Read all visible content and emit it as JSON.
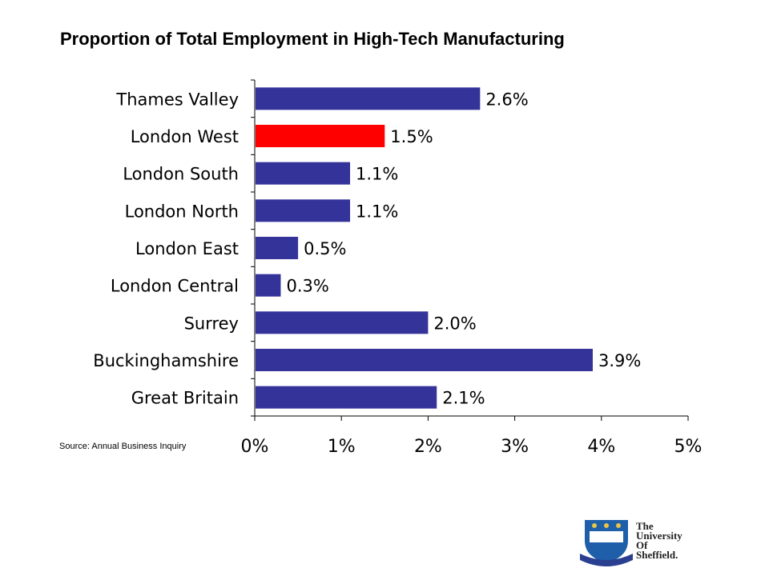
{
  "title": "Proportion of Total Employment in High-Tech Manufacturing",
  "source": "Source: Annual Business Inquiry",
  "colors": {
    "bar": "#333399",
    "highlight": "#ff0000",
    "axis": "#000000"
  },
  "logo": {
    "lines": [
      "The",
      "University",
      "Of",
      "Sheffield."
    ],
    "crest_colors": {
      "shield": "#1f5faa",
      "gold": "#e8c547",
      "ribbon": "#2a3f8f"
    }
  },
  "chart_data": {
    "type": "bar",
    "orientation": "horizontal",
    "title": "Proportion of Total Employment in High-Tech Manufacturing",
    "categories": [
      "Thames Valley",
      "London West",
      "London South",
      "London North",
      "London East",
      "London Central",
      "Surrey",
      "Buckinghamshire",
      "Great Britain"
    ],
    "values": [
      2.6,
      1.5,
      1.1,
      1.1,
      0.5,
      0.3,
      2.0,
      3.9,
      2.1
    ],
    "value_labels": [
      "2.6%",
      "1.5%",
      "1.1%",
      "1.1%",
      "0.5%",
      "0.3%",
      "2.0%",
      "3.9%",
      "2.1%"
    ],
    "highlight_category": "London West",
    "xlim": [
      0,
      5
    ],
    "xticks": [
      0,
      1,
      2,
      3,
      4,
      5
    ],
    "xtick_labels": [
      "0%",
      "1%",
      "2%",
      "3%",
      "4%",
      "5%"
    ],
    "xlabel": "",
    "ylabel": "",
    "grid": false,
    "legend": false
  }
}
